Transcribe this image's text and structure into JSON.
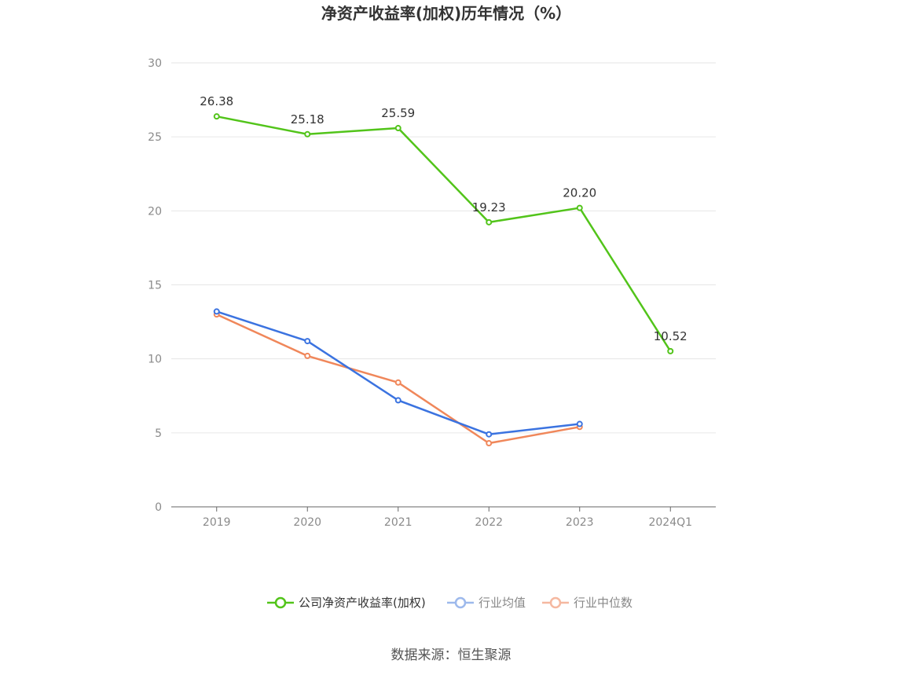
{
  "chart_data": {
    "type": "line",
    "title": "净资产收益率(加权)历年情况（%）",
    "categories": [
      "2019",
      "2020",
      "2021",
      "2022",
      "2023",
      "2024Q1"
    ],
    "ylim": [
      0,
      30
    ],
    "yticks": [
      0,
      5,
      10,
      15,
      20,
      25,
      30
    ],
    "grid": true,
    "legend_position": "bottom",
    "series": [
      {
        "name": "公司净资产收益率(加权)",
        "color": "#52c41a",
        "values": [
          26.38,
          25.18,
          25.59,
          19.23,
          20.2,
          10.52
        ],
        "labels": [
          "26.38",
          "25.18",
          "25.59",
          "19.23",
          "20.20",
          "10.52"
        ]
      },
      {
        "name": "行业均值",
        "color": "#3b73e0",
        "values": [
          13.2,
          11.2,
          7.2,
          4.9,
          5.6,
          null
        ]
      },
      {
        "name": "行业中位数",
        "color": "#f0875a",
        "values": [
          13.0,
          10.2,
          8.4,
          4.3,
          5.4,
          null
        ]
      }
    ],
    "legend_colors": [
      "#52c41a",
      "#9db9ec",
      "#f5b8a0"
    ]
  },
  "source": "数据来源：恒生聚源"
}
